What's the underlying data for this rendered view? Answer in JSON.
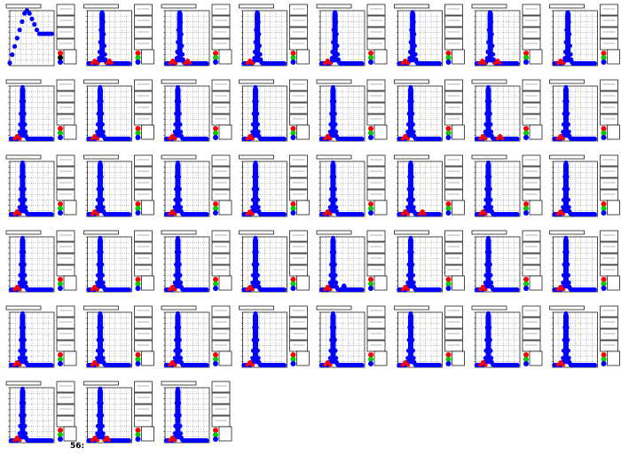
{
  "page": {
    "corner_label": "56:"
  },
  "colors": {
    "background": "#ffffff",
    "frame": "#000000",
    "grid": "#000000",
    "series_main": "#0000ff",
    "series_red": "#ff0000",
    "series_green": "#00cc00",
    "series_black": "#000000",
    "legend_box": "#ffffff"
  },
  "chart_data": [
    {
      "type": "scatter",
      "title": "",
      "grid": true,
      "legend_placement": "right",
      "series": [
        {
          "color": "#0000ff",
          "x": [
            0,
            0.5,
            1,
            1.5,
            2,
            2.5,
            3,
            3.5,
            4,
            4.5,
            5,
            5.5,
            6,
            6.5,
            7,
            7.5,
            8,
            8.5
          ],
          "values": [
            5,
            20,
            35,
            50,
            65,
            80,
            95,
            100,
            95,
            85,
            75,
            65,
            58,
            58,
            58,
            58,
            58,
            58
          ]
        }
      ],
      "legend_markers": [
        "#ff0000",
        "#000000",
        "#0000ff"
      ]
    },
    {
      "type": "scatter",
      "title": "",
      "grid": true,
      "legend_placement": "right",
      "peak_x": 3.0,
      "red_bumps": [
        1.5,
        4.5
      ],
      "blue_bumps": [],
      "legend_markers": [
        "#ff0000",
        "#00cc00",
        "#0000ff"
      ]
    },
    {
      "type": "scatter",
      "title": "",
      "grid": true,
      "legend_placement": "right",
      "peak_x": 3.0,
      "red_bumps": [
        1.6,
        4.6
      ],
      "blue_bumps": [],
      "legend_markers": [
        "#ff0000",
        "#00cc00",
        "#0000ff"
      ]
    },
    {
      "type": "scatter",
      "title": "",
      "grid": true,
      "legend_placement": "right",
      "peak_x": 3.0,
      "red_bumps": [
        1.5
      ],
      "blue_bumps": [],
      "legend_markers": [
        "#ff0000",
        "#00cc00",
        "#0000ff"
      ]
    },
    {
      "type": "scatter",
      "title": "",
      "grid": true,
      "legend_placement": "right",
      "peak_x": 3.0,
      "red_bumps": [
        1.5
      ],
      "blue_bumps": [],
      "legend_markers": [
        "#ff0000",
        "#00cc00",
        "#0000ff"
      ]
    },
    {
      "type": "scatter",
      "title": "",
      "grid": true,
      "legend_placement": "right",
      "peak_x": 3.0,
      "red_bumps": [
        1.5
      ],
      "blue_bumps": [],
      "legend_markers": [
        "#ff0000",
        "#00cc00",
        "#0000ff"
      ]
    },
    {
      "type": "scatter",
      "title": "",
      "grid": true,
      "legend_placement": "right",
      "peak_x": 3.0,
      "red_bumps": [
        1.4,
        4.5
      ],
      "blue_bumps": [],
      "legend_markers": [
        "#ff0000",
        "#00cc00",
        "#0000ff"
      ]
    },
    {
      "type": "scatter",
      "title": "",
      "grid": true,
      "legend_placement": "right",
      "peak_x": 3.0,
      "red_bumps": [
        1.5
      ],
      "blue_bumps": [],
      "legend_markers": [
        "#ff0000",
        "#00cc00",
        "#0000ff"
      ]
    },
    {
      "type": "scatter",
      "title": "",
      "grid": true,
      "legend_placement": "right",
      "peak_x": 2.6,
      "red_bumps": [
        1.5
      ],
      "blue_bumps": [],
      "legend_markers": [
        "#ff0000",
        "#00cc00",
        "#0000ff"
      ]
    },
    {
      "type": "scatter",
      "title": "",
      "grid": true,
      "legend_placement": "right",
      "peak_x": 2.6,
      "red_bumps": [
        1.5
      ],
      "blue_bumps": [],
      "legend_markers": [
        "#ff0000",
        "#00cc00",
        "#0000ff"
      ]
    },
    {
      "type": "scatter",
      "title": "",
      "grid": true,
      "legend_placement": "right",
      "peak_x": 2.6,
      "red_bumps": [
        1.5
      ],
      "blue_bumps": [],
      "legend_markers": [
        "#ff0000",
        "#00cc00",
        "#0000ff"
      ]
    },
    {
      "type": "scatter",
      "title": "",
      "grid": true,
      "legend_placement": "right",
      "peak_x": 2.6,
      "red_bumps": [
        1.5
      ],
      "blue_bumps": [],
      "legend_markers": [
        "#ff0000",
        "#00cc00",
        "#0000ff"
      ]
    },
    {
      "type": "scatter",
      "title": "",
      "grid": true,
      "legend_placement": "right",
      "peak_x": 2.6,
      "red_bumps": [
        1.5
      ],
      "blue_bumps": [],
      "legend_markers": [
        "#ff0000",
        "#00cc00",
        "#0000ff"
      ]
    },
    {
      "type": "scatter",
      "title": "",
      "grid": true,
      "legend_placement": "right",
      "peak_x": 2.6,
      "red_bumps": [
        1.5
      ],
      "blue_bumps": [],
      "legend_markers": [
        "#ff0000",
        "#00cc00",
        "#0000ff"
      ]
    },
    {
      "type": "scatter",
      "title": "",
      "grid": true,
      "legend_placement": "right",
      "peak_x": 2.6,
      "red_bumps": [
        1.5,
        5.0
      ],
      "blue_bumps": [],
      "legend_markers": [
        "#ff0000",
        "#00cc00",
        "#0000ff"
      ]
    },
    {
      "type": "scatter",
      "title": "",
      "grid": true,
      "legend_placement": "right",
      "peak_x": 2.6,
      "red_bumps": [
        1.5
      ],
      "blue_bumps": [],
      "legend_markers": [
        "#ff0000",
        "#00cc00",
        "#0000ff"
      ]
    },
    {
      "type": "scatter",
      "title": "",
      "grid": true,
      "legend_placement": "right",
      "peak_x": 2.6,
      "red_bumps": [
        1.5
      ],
      "blue_bumps": [],
      "legend_markers": [
        "#ff0000",
        "#00cc00",
        "#0000ff"
      ]
    },
    {
      "type": "scatter",
      "title": "",
      "grid": true,
      "legend_placement": "right",
      "peak_x": 2.6,
      "red_bumps": [
        1.5
      ],
      "blue_bumps": [],
      "legend_markers": [
        "#ff0000",
        "#00cc00",
        "#0000ff"
      ]
    },
    {
      "type": "scatter",
      "title": "",
      "grid": true,
      "legend_placement": "right",
      "peak_x": 2.6,
      "red_bumps": [
        1.5
      ],
      "blue_bumps": [],
      "legend_markers": [
        "#ff0000",
        "#00cc00",
        "#0000ff"
      ]
    },
    {
      "type": "scatter",
      "title": "",
      "grid": true,
      "legend_placement": "right",
      "peak_x": 2.6,
      "red_bumps": [
        1.5
      ],
      "blue_bumps": [],
      "legend_markers": [
        "#ff0000",
        "#00cc00",
        "#0000ff"
      ]
    },
    {
      "type": "scatter",
      "title": "",
      "grid": true,
      "legend_placement": "right",
      "peak_x": 2.6,
      "red_bumps": [
        1.5
      ],
      "blue_bumps": [],
      "legend_markers": [
        "#ff0000",
        "#00cc00",
        "#0000ff"
      ]
    },
    {
      "type": "scatter",
      "title": "",
      "grid": true,
      "legend_placement": "right",
      "peak_x": 2.6,
      "red_bumps": [
        1.5,
        5.0
      ],
      "blue_bumps": [],
      "legend_markers": [
        "#ff0000",
        "#00cc00",
        "#0000ff"
      ]
    },
    {
      "type": "scatter",
      "title": "",
      "grid": true,
      "legend_placement": "right",
      "peak_x": 2.6,
      "red_bumps": [
        1.5
      ],
      "blue_bumps": [],
      "legend_markers": [
        "#ff0000",
        "#00cc00",
        "#0000ff"
      ]
    },
    {
      "type": "scatter",
      "title": "",
      "grid": true,
      "legend_placement": "right",
      "peak_x": 2.6,
      "red_bumps": [
        1.5
      ],
      "blue_bumps": [],
      "legend_markers": [
        "#ff0000",
        "#00cc00",
        "#0000ff"
      ]
    },
    {
      "type": "scatter",
      "title": "",
      "grid": true,
      "legend_placement": "right",
      "peak_x": 2.6,
      "red_bumps": [
        1.5
      ],
      "blue_bumps": [],
      "legend_markers": [
        "#ff0000",
        "#00cc00",
        "#0000ff"
      ]
    },
    {
      "type": "scatter",
      "title": "",
      "grid": true,
      "legend_placement": "right",
      "peak_x": 2.6,
      "red_bumps": [
        1.5
      ],
      "blue_bumps": [],
      "legend_markers": [
        "#ff0000",
        "#00cc00",
        "#0000ff"
      ]
    },
    {
      "type": "scatter",
      "title": "",
      "grid": true,
      "legend_placement": "right",
      "peak_x": 2.6,
      "red_bumps": [
        1.5
      ],
      "blue_bumps": [],
      "legend_markers": [
        "#ff0000",
        "#00cc00",
        "#0000ff"
      ]
    },
    {
      "type": "scatter",
      "title": "",
      "grid": true,
      "legend_placement": "right",
      "peak_x": 2.6,
      "red_bumps": [
        1.5
      ],
      "blue_bumps": [],
      "legend_markers": [
        "#ff0000",
        "#00cc00",
        "#0000ff"
      ]
    },
    {
      "type": "scatter",
      "title": "",
      "grid": true,
      "legend_placement": "right",
      "peak_x": 2.6,
      "red_bumps": [
        1.5
      ],
      "blue_bumps": [
        4.8
      ],
      "legend_markers": [
        "#ff0000",
        "#00cc00",
        "#0000ff"
      ]
    },
    {
      "type": "scatter",
      "title": "",
      "grid": true,
      "legend_placement": "right",
      "peak_x": 2.6,
      "red_bumps": [
        1.5
      ],
      "blue_bumps": [],
      "legend_markers": [
        "#ff0000",
        "#00cc00",
        "#0000ff"
      ]
    },
    {
      "type": "scatter",
      "title": "",
      "grid": true,
      "legend_placement": "right",
      "peak_x": 2.6,
      "red_bumps": [
        1.5
      ],
      "blue_bumps": [],
      "legend_markers": [
        "#ff0000",
        "#00cc00",
        "#0000ff"
      ]
    },
    {
      "type": "scatter",
      "title": "",
      "grid": true,
      "legend_placement": "right",
      "peak_x": 2.6,
      "red_bumps": [
        1.5
      ],
      "blue_bumps": [],
      "legend_markers": [
        "#ff0000",
        "#00cc00",
        "#0000ff"
      ]
    },
    {
      "type": "scatter",
      "title": "",
      "grid": true,
      "legend_placement": "right",
      "peak_x": 2.6,
      "red_bumps": [
        1.5
      ],
      "blue_bumps": [],
      "legend_markers": [
        "#ff0000",
        "#00cc00",
        "#0000ff"
      ]
    },
    {
      "type": "scatter",
      "title": "",
      "grid": true,
      "legend_placement": "right",
      "peak_x": 2.6,
      "red_bumps": [
        1.5
      ],
      "blue_bumps": [],
      "legend_markers": [
        "#ff0000",
        "#00cc00",
        "#0000ff"
      ]
    },
    {
      "type": "scatter",
      "title": "",
      "grid": true,
      "legend_placement": "right",
      "peak_x": 2.6,
      "red_bumps": [
        1.5
      ],
      "blue_bumps": [],
      "legend_markers": [
        "#ff0000",
        "#00cc00",
        "#0000ff"
      ]
    },
    {
      "type": "scatter",
      "title": "",
      "grid": true,
      "legend_placement": "right",
      "peak_x": 2.6,
      "red_bumps": [
        1.5
      ],
      "blue_bumps": [],
      "legend_markers": [
        "#ff0000",
        "#00cc00",
        "#0000ff"
      ]
    },
    {
      "type": "scatter",
      "title": "",
      "grid": true,
      "legend_placement": "right",
      "peak_x": 2.6,
      "red_bumps": [
        1.5
      ],
      "blue_bumps": [],
      "legend_markers": [
        "#ff0000",
        "#00cc00",
        "#0000ff"
      ]
    },
    {
      "type": "scatter",
      "title": "",
      "grid": true,
      "legend_placement": "right",
      "peak_x": 2.6,
      "red_bumps": [
        1.5
      ],
      "blue_bumps": [],
      "legend_markers": [
        "#ff0000",
        "#00cc00",
        "#0000ff"
      ]
    },
    {
      "type": "scatter",
      "title": "",
      "grid": true,
      "legend_placement": "right",
      "peak_x": 2.6,
      "red_bumps": [
        1.5
      ],
      "blue_bumps": [],
      "legend_markers": [
        "#ff0000",
        "#00cc00",
        "#0000ff"
      ]
    },
    {
      "type": "scatter",
      "title": "",
      "grid": true,
      "legend_placement": "right",
      "peak_x": 2.6,
      "red_bumps": [
        1.5
      ],
      "blue_bumps": [],
      "legend_markers": [
        "#ff0000",
        "#00cc00",
        "#0000ff"
      ]
    },
    {
      "type": "scatter",
      "title": "",
      "grid": true,
      "legend_placement": "right",
      "peak_x": 2.6,
      "red_bumps": [
        1.5
      ],
      "blue_bumps": [],
      "legend_markers": [
        "#ff0000",
        "#00cc00",
        "#0000ff"
      ]
    },
    {
      "type": "scatter",
      "title": "",
      "grid": true,
      "legend_placement": "right",
      "peak_x": 2.6,
      "red_bumps": [
        1.5,
        4.0
      ],
      "blue_bumps": [],
      "legend_markers": [
        "#ff0000",
        "#00cc00",
        "#0000ff"
      ]
    },
    {
      "type": "scatter",
      "title": "",
      "grid": true,
      "legend_placement": "right",
      "peak_x": 2.6,
      "red_bumps": [
        1.5
      ],
      "blue_bumps": [],
      "legend_markers": [
        "#ff0000",
        "#00cc00",
        "#0000ff"
      ]
    }
  ]
}
